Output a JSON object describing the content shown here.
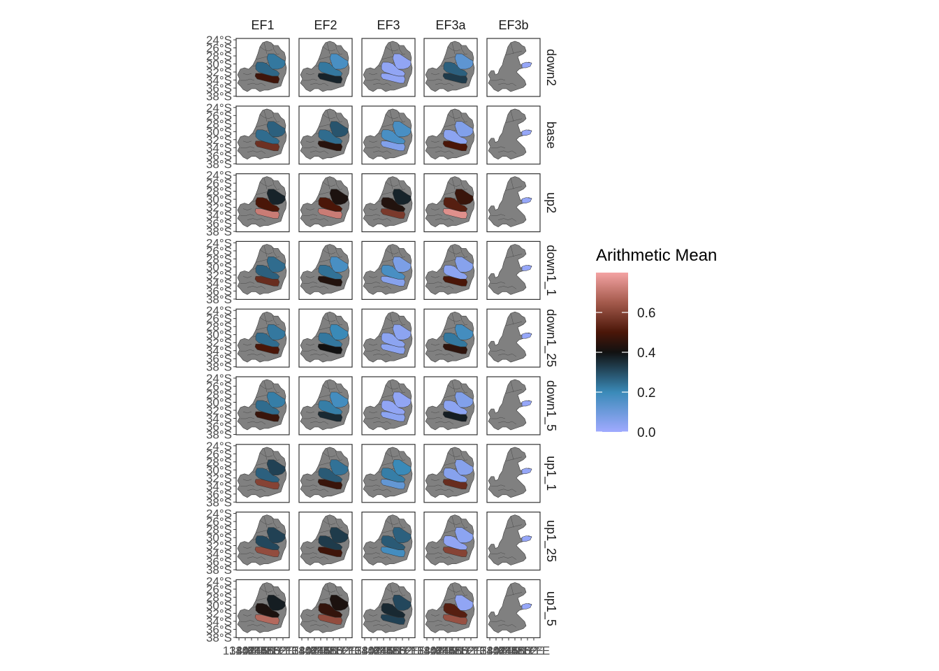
{
  "chart_data": {
    "type": "heatmap",
    "columns": [
      "EF1",
      "EF2",
      "EF3",
      "EF3a",
      "EF3b"
    ],
    "rows": [
      "down2",
      "base",
      "up2",
      "down1_1",
      "down1_25",
      "down1_5",
      "up1_1",
      "up1_25",
      "up1_5"
    ],
    "y_tick_labels": [
      "24°S",
      "26°S",
      "28°S",
      "30°S",
      "32°S",
      "34°S",
      "36°S",
      "38°S"
    ],
    "x_tick_labels": [
      "138°E",
      "140°E",
      "142°E",
      "144°E",
      "146°E",
      "148°E",
      "150°E",
      "152°E"
    ],
    "legend": {
      "title": "Arithmetic Mean",
      "ticks": [
        0.0,
        0.2,
        0.4,
        0.6
      ],
      "tick_labels": [
        "0.0",
        "0.2",
        "0.4",
        "0.6"
      ],
      "range": [
        0.0,
        0.8
      ],
      "color_stops": [
        {
          "value": 0.0,
          "color": "#a0aaff"
        },
        {
          "value": 0.2,
          "color": "#3a8ab8"
        },
        {
          "value": 0.4,
          "color": "#111111"
        },
        {
          "value": 0.5,
          "color": "#4a1608"
        },
        {
          "value": 0.65,
          "color": "#a45a4c"
        },
        {
          "value": 0.8,
          "color": "#f4a3a3"
        }
      ],
      "placement": "right"
    },
    "na_color": "#808080",
    "region_values_description": "values per panel for regions [north-east, middle, south]; null = no data (grey)",
    "panels": {
      "down2": {
        "EF1": [
          0.23,
          0.26,
          0.48
        ],
        "EF2": [
          0.17,
          0.23,
          0.37
        ],
        "EF3": [
          0.03,
          0.03,
          0.03
        ],
        "EF3a": [
          0.13,
          0.27,
          0.33
        ],
        "EF3b": [
          0.02,
          null,
          null
        ]
      },
      "base": {
        "EF1": [
          0.27,
          0.25,
          0.56
        ],
        "EF2": [
          0.29,
          0.25,
          0.44
        ],
        "EF3": [
          0.17,
          0.17,
          0.06
        ],
        "EF3a": [
          0.06,
          0.04,
          0.5
        ],
        "EF3b": [
          0.02,
          null,
          null
        ]
      },
      "up2": {
        "EF1": [
          0.37,
          0.5,
          0.72
        ],
        "EF2": [
          0.42,
          0.5,
          0.72
        ],
        "EF3": [
          0.37,
          0.43,
          0.58
        ],
        "EF3a": [
          0.47,
          0.52,
          0.76
        ],
        "EF3b": [
          0.02,
          null,
          null
        ]
      },
      "down1_1": {
        "EF1": [
          0.25,
          0.27,
          0.55
        ],
        "EF2": [
          0.17,
          0.24,
          0.43
        ],
        "EF3": [
          0.07,
          0.17,
          0.05
        ],
        "EF3a": [
          0.05,
          0.04,
          0.5
        ],
        "EF3b": [
          0.02,
          null,
          null
        ]
      },
      "down1_25": {
        "EF1": [
          0.23,
          0.25,
          0.5
        ],
        "EF2": [
          0.2,
          0.23,
          0.4
        ],
        "EF3": [
          0.04,
          0.04,
          0.04
        ],
        "EF3a": [
          0.18,
          0.23,
          0.45
        ],
        "EF3b": [
          0.02,
          null,
          null
        ]
      },
      "down1_5": {
        "EF1": [
          0.22,
          0.25,
          0.47
        ],
        "EF2": [
          0.18,
          0.22,
          0.36
        ],
        "EF3": [
          0.03,
          0.03,
          0.04
        ],
        "EF3a": [
          0.06,
          0.04,
          0.38
        ],
        "EF3b": [
          0.02,
          null,
          null
        ]
      },
      "up1_1": {
        "EF1": [
          0.32,
          0.27,
          0.6
        ],
        "EF2": [
          0.24,
          0.28,
          0.47
        ],
        "EF3": [
          0.2,
          0.22,
          0.12
        ],
        "EF3a": [
          0.05,
          0.05,
          0.55
        ],
        "EF3b": [
          0.02,
          null,
          null
        ]
      },
      "up1_25": {
        "EF1": [
          0.32,
          0.31,
          0.62
        ],
        "EF2": [
          0.33,
          0.33,
          0.48
        ],
        "EF3": [
          0.27,
          0.28,
          0.18
        ],
        "EF3a": [
          0.04,
          0.03,
          0.6
        ],
        "EF3b": [
          0.02,
          null,
          null
        ]
      },
      "up1_5": {
        "EF1": [
          0.38,
          0.42,
          0.68
        ],
        "EF2": [
          0.42,
          0.46,
          0.62
        ],
        "EF3": [
          0.31,
          0.36,
          0.32
        ],
        "EF3a": [
          0.03,
          0.52,
          0.63
        ],
        "EF3b": [
          0.02,
          null,
          null
        ]
      }
    }
  }
}
